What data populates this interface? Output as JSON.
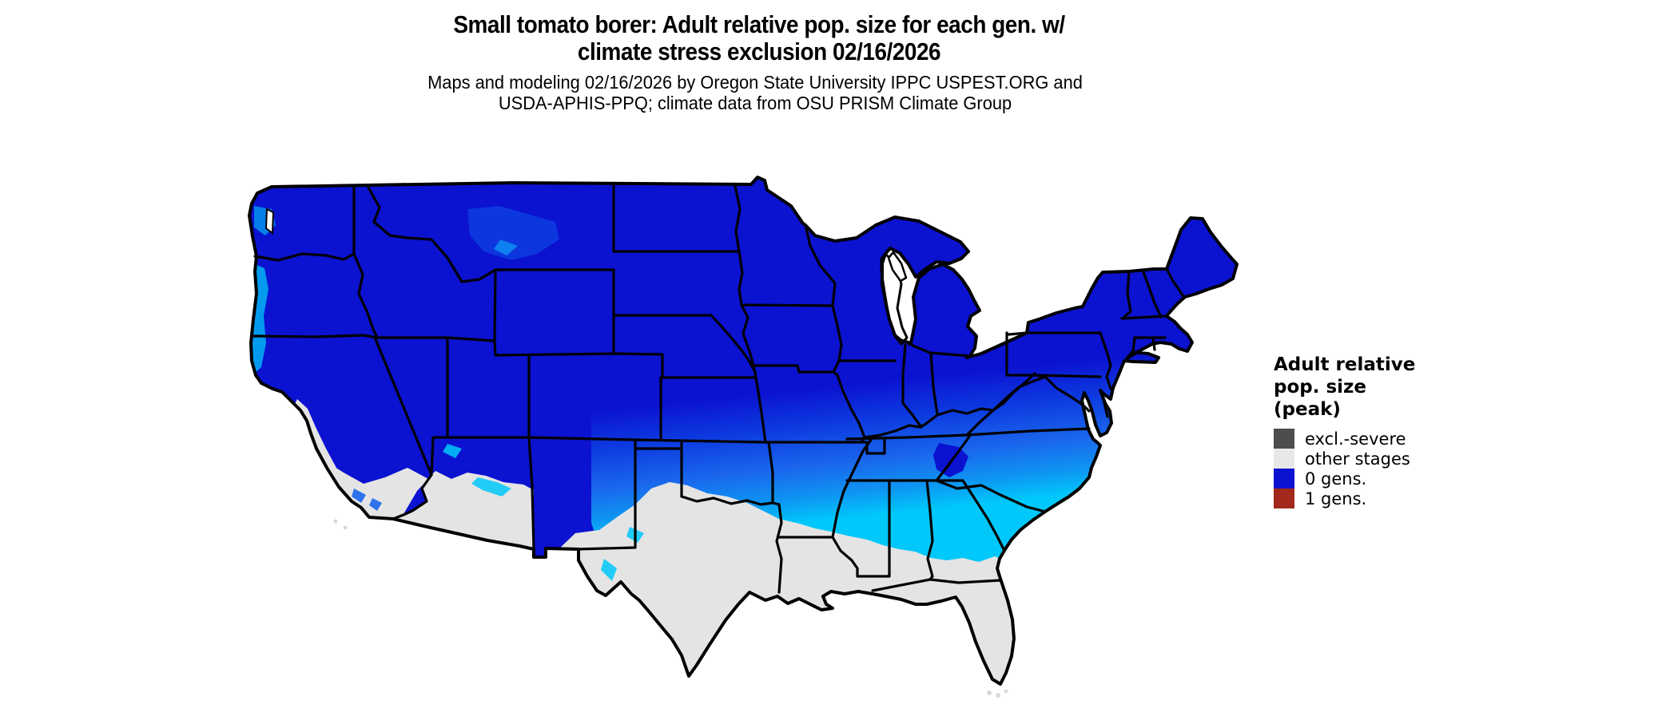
{
  "title": {
    "line1": "Small tomato borer: Adult relative pop. size for each gen. w/",
    "line2": "climate stress exclusion 02/16/2026"
  },
  "subtitle": {
    "line1": "Maps and modeling 02/16/2026 by Oregon State University IPPC USPEST.ORG and",
    "line2": "USDA-APHIS-PPQ; climate data from OSU PRISM Climate Group"
  },
  "legend": {
    "title_lines": [
      "Adult relative",
      "pop. size",
      "(peak)"
    ],
    "items": [
      {
        "label": "excl.-severe",
        "color": "#4d4d4d"
      },
      {
        "label": "other stages",
        "color": "#e8e8e8"
      },
      {
        "label": "0 gens.",
        "color": "#0b12d0"
      },
      {
        "label": "1 gens.",
        "color": "#a2291b"
      }
    ]
  },
  "map": {
    "region": "Continental United States",
    "colors": {
      "gens0_dark": "#0b12d0",
      "gens0_band2": "#0d3be0",
      "gens0_band3": "#1a66ec",
      "gens0_band4": "#0f93f2",
      "gens0_band5": "#00c8fa",
      "other_stages": "#e4e4e4",
      "excl_severe": "#4d4d4d",
      "border": "#000000",
      "water": "#ffffff"
    }
  }
}
